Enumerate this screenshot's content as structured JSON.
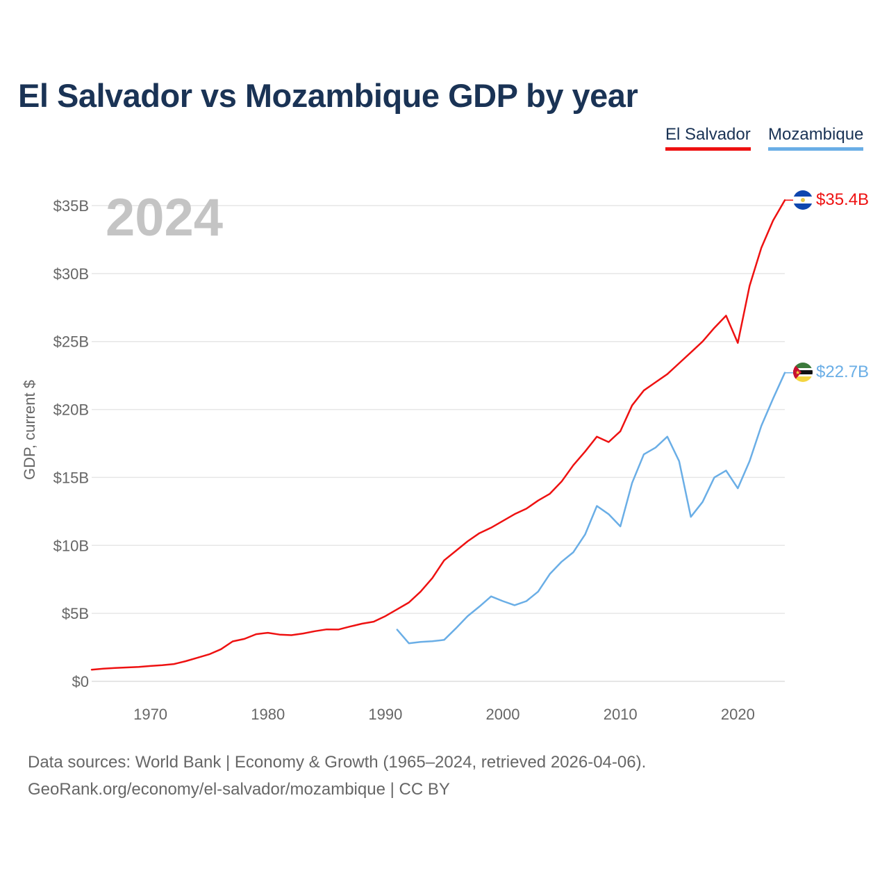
{
  "title": "El Salvador vs Mozambique GDP by year",
  "legend": [
    {
      "label": "El Salvador",
      "color": "#ee1111"
    },
    {
      "label": "Mozambique",
      "color": "#6aaee6"
    }
  ],
  "year_label": "2024",
  "footer": {
    "source": "Data sources: World Bank | Economy & Growth (1965–2024, retrieved 2026-04-06).",
    "credit": "GeoRank.org/economy/el-salvador/mozambique | CC BY"
  },
  "chart_data": {
    "type": "line",
    "title": "El Salvador vs Mozambique GDP by year",
    "xlabel": "",
    "ylabel": "GDP, current $",
    "xlim": [
      1965,
      2024
    ],
    "ylim": [
      0,
      35
    ],
    "x_ticks": [
      1970,
      1980,
      1990,
      2000,
      2010,
      2020
    ],
    "y_ticks": [
      0,
      5,
      10,
      15,
      20,
      25,
      30,
      35
    ],
    "y_tick_labels": [
      "$0",
      "$5B",
      "$10B",
      "$15B",
      "$20B",
      "$25B",
      "$30B",
      "$35B"
    ],
    "grid": true,
    "units": "billions of current US dollars",
    "series": [
      {
        "name": "El Salvador",
        "color": "#ee1111",
        "end_label": "$35.4B",
        "x": [
          1965,
          1966,
          1967,
          1968,
          1969,
          1970,
          1971,
          1972,
          1973,
          1974,
          1975,
          1976,
          1977,
          1978,
          1979,
          1980,
          1981,
          1982,
          1983,
          1984,
          1985,
          1986,
          1987,
          1988,
          1989,
          1990,
          1991,
          1992,
          1993,
          1994,
          1995,
          1996,
          1997,
          1998,
          1999,
          2000,
          2001,
          2002,
          2003,
          2004,
          2005,
          2006,
          2007,
          2008,
          2009,
          2010,
          2011,
          2012,
          2013,
          2014,
          2015,
          2016,
          2017,
          2018,
          2019,
          2020,
          2021,
          2022,
          2023,
          2024
        ],
        "values": [
          0.86,
          0.93,
          0.98,
          1.02,
          1.06,
          1.13,
          1.19,
          1.27,
          1.48,
          1.73,
          1.99,
          2.36,
          2.94,
          3.12,
          3.47,
          3.57,
          3.44,
          3.4,
          3.52,
          3.69,
          3.82,
          3.81,
          4.03,
          4.24,
          4.39,
          4.8,
          5.3,
          5.8,
          6.6,
          7.6,
          8.9,
          9.6,
          10.3,
          10.9,
          11.3,
          11.8,
          12.3,
          12.7,
          13.3,
          13.8,
          14.7,
          15.9,
          16.9,
          18.0,
          17.6,
          18.4,
          20.3,
          21.4,
          22.0,
          22.6,
          23.4,
          24.2,
          25.0,
          26.0,
          26.9,
          24.9,
          29.1,
          31.9,
          33.9,
          35.4
        ]
      },
      {
        "name": "Mozambique",
        "color": "#6aaee6",
        "end_label": "$22.7B",
        "x": [
          1991,
          1992,
          1993,
          1994,
          1995,
          1996,
          1997,
          1998,
          1999,
          2000,
          2001,
          2002,
          2003,
          2004,
          2005,
          2006,
          2007,
          2008,
          2009,
          2010,
          2011,
          2012,
          2013,
          2014,
          2015,
          2016,
          2017,
          2018,
          2019,
          2020,
          2021,
          2022,
          2023,
          2024
        ],
        "values": [
          3.8,
          2.8,
          2.9,
          2.95,
          3.05,
          3.9,
          4.8,
          5.5,
          6.25,
          5.9,
          5.6,
          5.9,
          6.6,
          7.9,
          8.8,
          9.5,
          10.8,
          12.9,
          12.3,
          11.4,
          14.6,
          16.7,
          17.2,
          18.0,
          16.2,
          12.1,
          13.2,
          15.0,
          15.5,
          14.2,
          16.2,
          18.8,
          20.8,
          22.7
        ]
      }
    ]
  }
}
